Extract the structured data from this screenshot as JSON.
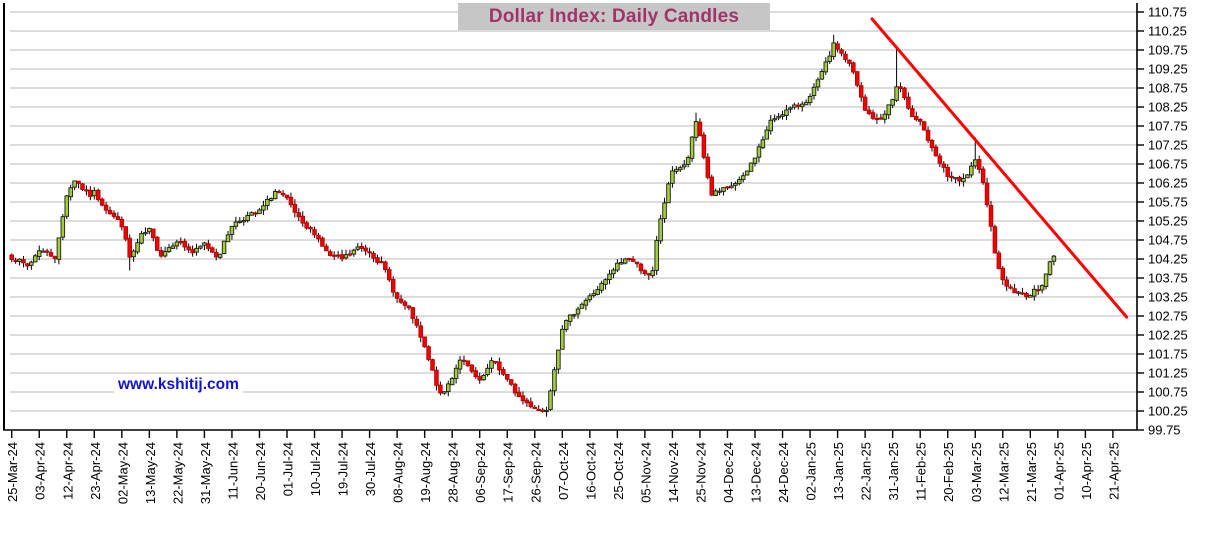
{
  "title": {
    "text": "Dollar Index: Daily Candles",
    "color": "#A03468",
    "background": "#C6C6C6"
  },
  "watermark": {
    "text": "www.kshitij.com",
    "color": "#1113D2"
  },
  "chart_data": {
    "type": "candlestick",
    "title": "Dollar Index: Daily Candles",
    "instrument": "Dollar Index",
    "interval": "Daily",
    "grid": "horizontal",
    "y_axis": {
      "side": "right",
      "min": 99.75,
      "max": 110.75,
      "step": 0.5,
      "tick_labels": [
        "110.75",
        "110.25",
        "109.75",
        "109.25",
        "108.75",
        "108.25",
        "107.75",
        "107.25",
        "106.75",
        "106.25",
        "105.75",
        "105.25",
        "104.75",
        "104.25",
        "103.75",
        "103.25",
        "102.75",
        "102.25",
        "101.75",
        "101.25",
        "100.75",
        "100.25",
        "99.75"
      ]
    },
    "x_axis": {
      "side": "bottom",
      "tick_labels": [
        "25-Mar-24",
        "03-Apr-24",
        "12-Apr-24",
        "23-Apr-24",
        "02-May-24",
        "13-May-24",
        "22-May-24",
        "31-May-24",
        "11-Jun-24",
        "20-Jun-24",
        "01-Jul-24",
        "10-Jul-24",
        "19-Jul-24",
        "30-Jul-24",
        "08-Aug-24",
        "19-Aug-24",
        "28-Aug-24",
        "06-Sep-24",
        "17-Sep-24",
        "26-Sep-24",
        "07-Oct-24",
        "16-Oct-24",
        "25-Oct-24",
        "05-Nov-24",
        "14-Nov-24",
        "25-Nov-24",
        "04-Dec-24",
        "13-Dec-24",
        "24-Dec-24",
        "02-Jan-25",
        "13-Jan-25",
        "22-Jan-25",
        "31-Jan-25",
        "11-Feb-25",
        "20-Feb-25",
        "03-Mar-25",
        "12-Mar-25",
        "21-Mar-25",
        "01-Apr-25",
        "10-Apr-25",
        "21-Apr-25"
      ],
      "candles_per_tick": 7,
      "last_data_tick_position": 37.8
    },
    "colors": {
      "up_fill": "#A2CE39",
      "up_stroke": "#1A1A1A",
      "down_fill": "#F50000",
      "down_stroke": "#B40000",
      "wick": "#000000",
      "grid": "#C6C6C6",
      "axis": "#000000"
    },
    "close_keypoints": [
      {
        "t": 0,
        "v": 104.3
      },
      {
        "t": 0.6,
        "v": 104.05
      },
      {
        "t": 1,
        "v": 104.5
      },
      {
        "t": 1.6,
        "v": 104.3
      },
      {
        "t": 2,
        "v": 105.95
      },
      {
        "t": 2.3,
        "v": 106.35
      },
      {
        "t": 2.8,
        "v": 105.9
      },
      {
        "t": 3,
        "v": 106.0
      },
      {
        "t": 3.4,
        "v": 105.6
      },
      {
        "t": 4,
        "v": 105.15
      },
      {
        "t": 4.3,
        "v": 104.25
      },
      {
        "t": 4.7,
        "v": 104.85
      },
      {
        "t": 5,
        "v": 105.0
      },
      {
        "t": 5.4,
        "v": 104.35
      },
      {
        "t": 6,
        "v": 104.75
      },
      {
        "t": 6.6,
        "v": 104.4
      },
      {
        "t": 7,
        "v": 104.65
      },
      {
        "t": 7.5,
        "v": 104.3
      },
      {
        "t": 8,
        "v": 105.15
      },
      {
        "t": 8.5,
        "v": 105.35
      },
      {
        "t": 9,
        "v": 105.5
      },
      {
        "t": 9.6,
        "v": 106.05
      },
      {
        "t": 10,
        "v": 105.8
      },
      {
        "t": 10.6,
        "v": 105.1
      },
      {
        "t": 11,
        "v": 104.95
      },
      {
        "t": 11.5,
        "v": 104.35
      },
      {
        "t": 12,
        "v": 104.25
      },
      {
        "t": 12.6,
        "v": 104.55
      },
      {
        "t": 13,
        "v": 104.45
      },
      {
        "t": 13.5,
        "v": 104.05
      },
      {
        "t": 14,
        "v": 103.2
      },
      {
        "t": 14.5,
        "v": 102.85
      },
      {
        "t": 15,
        "v": 101.9
      },
      {
        "t": 15.6,
        "v": 100.6
      },
      {
        "t": 16,
        "v": 101.15
      },
      {
        "t": 16.3,
        "v": 101.65
      },
      {
        "t": 17,
        "v": 101.0
      },
      {
        "t": 17.5,
        "v": 101.6
      },
      {
        "t": 18,
        "v": 101.05
      },
      {
        "t": 18.5,
        "v": 100.55
      },
      {
        "t": 19,
        "v": 100.35
      },
      {
        "t": 19.4,
        "v": 100.2
      },
      {
        "t": 20,
        "v": 102.45
      },
      {
        "t": 20.6,
        "v": 103.0
      },
      {
        "t": 21,
        "v": 103.25
      },
      {
        "t": 21.6,
        "v": 103.7
      },
      {
        "t": 22,
        "v": 104.1
      },
      {
        "t": 22.4,
        "v": 104.3
      },
      {
        "t": 23,
        "v": 103.9
      },
      {
        "t": 23.25,
        "v": 103.7
      },
      {
        "t": 23.5,
        "v": 105.1
      },
      {
        "t": 24,
        "v": 106.6
      },
      {
        "t": 24.5,
        "v": 106.7
      },
      {
        "t": 24.9,
        "v": 108.0
      },
      {
        "t": 25,
        "v": 107.5
      },
      {
        "t": 25.4,
        "v": 105.95
      },
      {
        "t": 26,
        "v": 106.1
      },
      {
        "t": 26.6,
        "v": 106.4
      },
      {
        "t": 27,
        "v": 106.95
      },
      {
        "t": 27.6,
        "v": 107.9
      },
      {
        "t": 28,
        "v": 108.1
      },
      {
        "t": 28.6,
        "v": 108.3
      },
      {
        "t": 29,
        "v": 108.5
      },
      {
        "t": 29.5,
        "v": 109.25
      },
      {
        "t": 29.9,
        "v": 109.95
      },
      {
        "t": 30,
        "v": 109.8
      },
      {
        "t": 30.5,
        "v": 109.3
      },
      {
        "t": 31,
        "v": 108.15
      },
      {
        "t": 31.5,
        "v": 107.85
      },
      {
        "t": 32,
        "v": 108.45
      },
      {
        "t": 32.2,
        "v": 108.9
      },
      {
        "t": 32.6,
        "v": 108.1
      },
      {
        "t": 33,
        "v": 107.9
      },
      {
        "t": 33.5,
        "v": 107.0
      },
      {
        "t": 34,
        "v": 106.45
      },
      {
        "t": 34.5,
        "v": 106.25
      },
      {
        "t": 35,
        "v": 106.8
      },
      {
        "t": 35.3,
        "v": 106.3
      },
      {
        "t": 35.7,
        "v": 104.5
      },
      {
        "t": 36,
        "v": 103.65
      },
      {
        "t": 36.5,
        "v": 103.35
      },
      {
        "t": 37,
        "v": 103.3
      },
      {
        "t": 37.4,
        "v": 103.55
      },
      {
        "t": 37.8,
        "v": 104.3
      }
    ],
    "wick_extremes": [
      {
        "t": 4.3,
        "low": 103.95
      },
      {
        "t": 19.4,
        "low": 100.1
      },
      {
        "t": 24.9,
        "high": 108.1
      },
      {
        "t": 29.9,
        "high": 110.15
      },
      {
        "t": 32.2,
        "high": 109.8
      },
      {
        "t": 35.0,
        "high": 107.45
      }
    ],
    "trendline": {
      "color": "#FF0000",
      "width": 3,
      "t1": 31.25,
      "v1": 110.57,
      "t2": 40.5,
      "v2": 102.72
    }
  }
}
